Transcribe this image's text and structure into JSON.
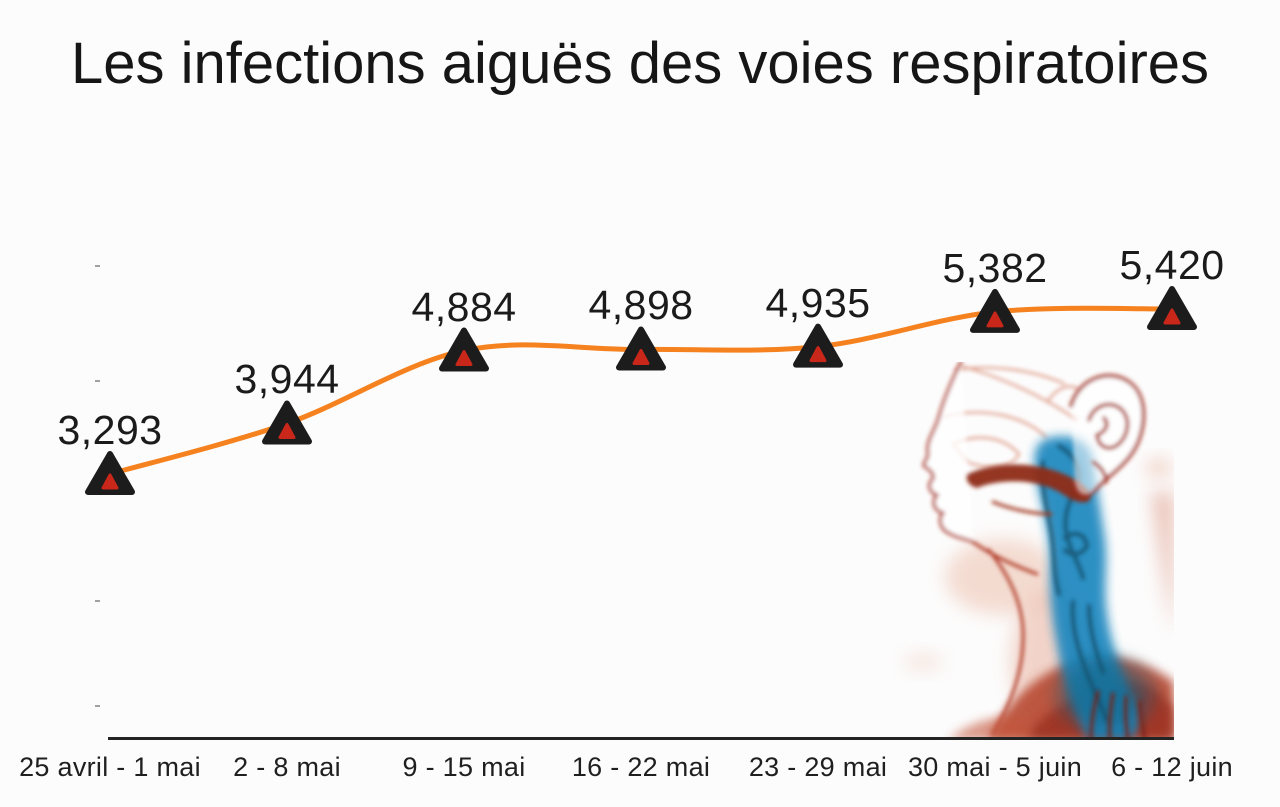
{
  "chart_data": {
    "type": "line",
    "title": "Les infections aiguës des voies respiratoires",
    "categories": [
      "25 avril - 1 mai",
      "2 - 8 mai",
      "9 - 15 mai",
      "16 - 22 mai",
      "23 - 29 mai",
      "30 mai - 5 juin",
      "6 - 12 juin"
    ],
    "values": [
      3293,
      3944,
      4884,
      4898,
      4935,
      5382,
      5420
    ],
    "value_labels": [
      "3,293",
      "3,944",
      "4,884",
      "4,898",
      "4,935",
      "5,382",
      "5,420"
    ],
    "xlabel": "",
    "ylabel": "",
    "ylim": [
      0,
      6000
    ],
    "grid": false,
    "legend": "none",
    "marker": "triangle-up",
    "y_axis_tick_count": 5,
    "y_axis_labels_visible": false,
    "colors": {
      "line": "#f5821f",
      "marker": "#1c1c1c",
      "marker_inner": "#c8271a",
      "axis": "#242424",
      "tick": "#8a8a8a",
      "text": "#1b1b1b",
      "background": "#fcfcfc"
    }
  },
  "illustration": {
    "name": "head-profile-respiratory-tract",
    "description": "Anatomical side profile of a human head and neck with the upper respiratory tract highlighted in blue",
    "colors": {
      "skin_outline": "#b13a25",
      "skin_shade": "#c05038",
      "dark_red": "#8e2a18",
      "airway": "#1c87bf",
      "airway_dark": "#14516e"
    }
  }
}
